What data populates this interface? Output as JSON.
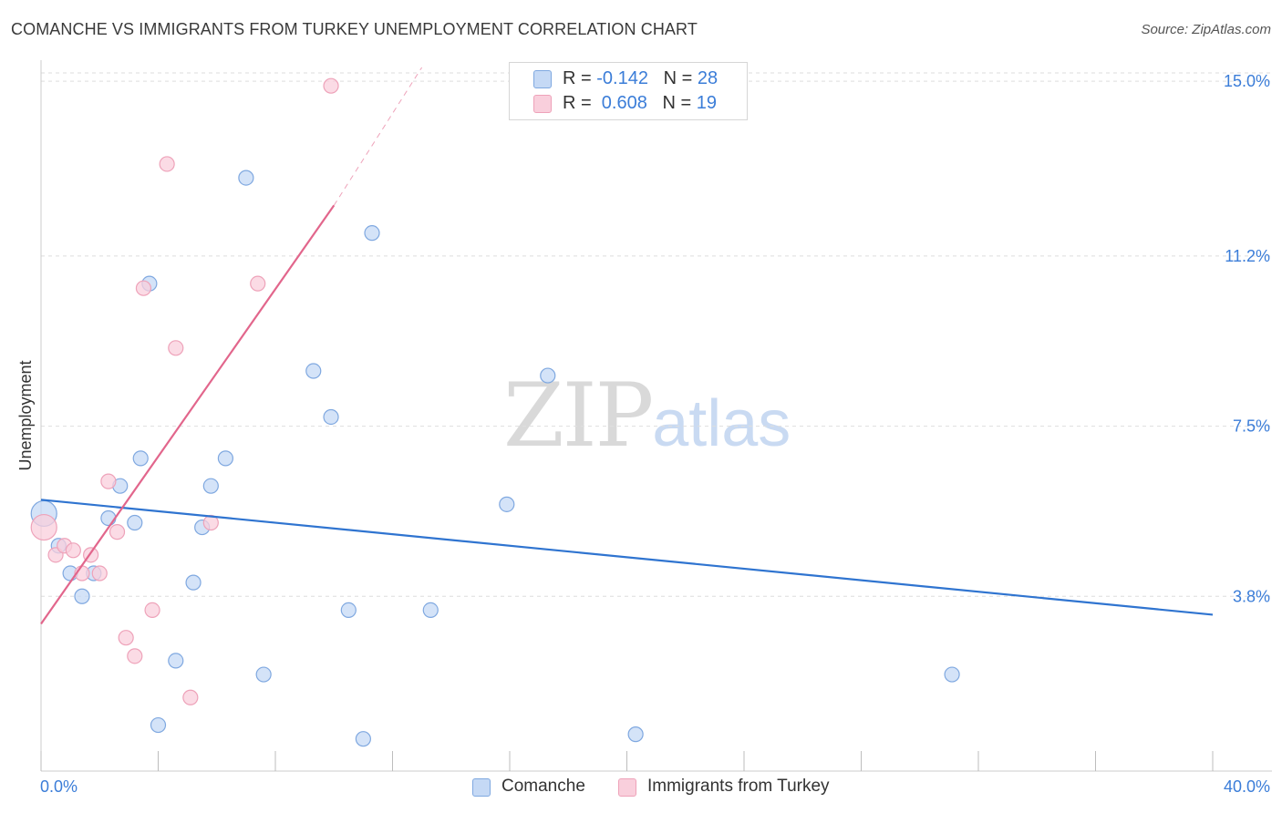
{
  "header": {
    "title": "COMANCHE VS IMMIGRANTS FROM TURKEY UNEMPLOYMENT CORRELATION CHART",
    "source": "Source: ZipAtlas.com"
  },
  "watermark": {
    "zip": "ZIP",
    "atlas": "atlas"
  },
  "legend": {
    "rows": [
      {
        "r_label": "R = ",
        "r_value": "-0.142",
        "n_label": "N = ",
        "n_value": "28"
      },
      {
        "r_label": "R = ",
        "r_value": " 0.608",
        "n_label": "N = ",
        "n_value": "19"
      }
    ]
  },
  "bottom_legend": {
    "items": [
      {
        "label": "Comanche"
      },
      {
        "label": "Immigrants from Turkey"
      }
    ]
  },
  "colors": {
    "blue_fill": "#c5d9f5",
    "blue_stroke": "#7fa8e0",
    "blue_line": "#2f74d0",
    "pink_fill": "#f9cfdc",
    "pink_stroke": "#eea2b9",
    "pink_line": "#e2668c",
    "tick_label": "#3b7dd8",
    "grid": "#dedede"
  },
  "chart_data": {
    "type": "scatter",
    "title": "COMANCHE VS IMMIGRANTS FROM TURKEY UNEMPLOYMENT CORRELATION CHART",
    "xlabel": "",
    "ylabel": "Unemployment",
    "xlim": [
      0,
      40
    ],
    "ylim": [
      0,
      15.3
    ],
    "x_tick_labels": [
      "0.0%",
      "40.0%"
    ],
    "y_ticks": [
      3.8,
      7.5,
      11.2,
      15.0
    ],
    "y_tick_labels": [
      "3.8%",
      "7.5%",
      "11.2%",
      "15.0%"
    ],
    "grid": true,
    "legend_position": "top-center",
    "series": [
      {
        "name": "Comanche",
        "color": "#7fa8e0",
        "points": [
          [
            0.1,
            5.6
          ],
          [
            0.6,
            4.9
          ],
          [
            1.0,
            4.3
          ],
          [
            1.4,
            3.8
          ],
          [
            1.8,
            4.3
          ],
          [
            2.3,
            5.5
          ],
          [
            2.7,
            6.2
          ],
          [
            3.2,
            5.4
          ],
          [
            3.4,
            6.8
          ],
          [
            3.7,
            10.6
          ],
          [
            4.0,
            1.0
          ],
          [
            4.6,
            2.4
          ],
          [
            5.2,
            4.1
          ],
          [
            5.5,
            5.3
          ],
          [
            5.8,
            6.2
          ],
          [
            6.3,
            6.8
          ],
          [
            7.0,
            12.9
          ],
          [
            7.6,
            2.1
          ],
          [
            9.3,
            8.7
          ],
          [
            9.9,
            7.7
          ],
          [
            10.5,
            3.5
          ],
          [
            11.0,
            0.7
          ],
          [
            11.3,
            11.7
          ],
          [
            13.3,
            3.5
          ],
          [
            15.9,
            5.8
          ],
          [
            17.3,
            8.6
          ],
          [
            20.3,
            0.8
          ],
          [
            31.1,
            2.1
          ]
        ],
        "trend": {
          "x": [
            0,
            40
          ],
          "y": [
            5.9,
            3.4
          ]
        }
      },
      {
        "name": "Immigrants from Turkey",
        "color": "#eea2b9",
        "points": [
          [
            0.1,
            5.3
          ],
          [
            0.5,
            4.7
          ],
          [
            0.8,
            4.9
          ],
          [
            1.1,
            4.8
          ],
          [
            1.4,
            4.3
          ],
          [
            1.7,
            4.7
          ],
          [
            2.0,
            4.3
          ],
          [
            2.3,
            6.3
          ],
          [
            2.6,
            5.2
          ],
          [
            2.9,
            2.9
          ],
          [
            3.2,
            2.5
          ],
          [
            3.5,
            10.5
          ],
          [
            3.8,
            3.5
          ],
          [
            4.3,
            13.2
          ],
          [
            4.6,
            9.2
          ],
          [
            5.1,
            1.6
          ],
          [
            5.8,
            5.4
          ],
          [
            7.4,
            10.6
          ],
          [
            9.9,
            14.9
          ]
        ],
        "trend": {
          "x": [
            0,
            10.0
          ],
          "y": [
            3.2,
            12.3
          ]
        },
        "trend_extension": {
          "x": [
            10.0,
            13.0
          ],
          "y": [
            12.3,
            15.3
          ]
        }
      }
    ]
  }
}
